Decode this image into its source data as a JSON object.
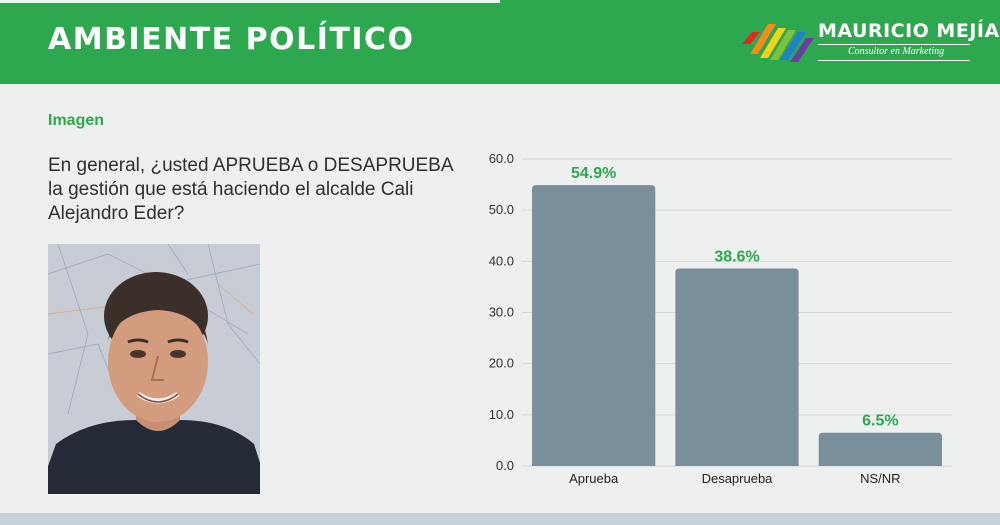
{
  "header": {
    "title": "AMBIENTE POLÍTICO",
    "brand_name": "MAURICIO MEJÍA",
    "brand_tagline": "Consultor en Marketing",
    "brand_color": "#2da84e"
  },
  "section_label": "Imagen",
  "question": "En general, ¿usted APRUEBA o DESAPRUEBA la gestión que está haciendo el alcalde Cali Alejandro Eder?",
  "photo": {
    "icon": "portrait-photo"
  },
  "colors": {
    "bar": "#7a8f9c",
    "value_label": "#2da84e",
    "background": "#eeefef"
  },
  "chart_data": {
    "type": "bar",
    "categories": [
      "Aprueba",
      "Desaprueba",
      "NS/NR"
    ],
    "values": [
      54.9,
      38.6,
      6.5
    ],
    "value_labels": [
      "54.9%",
      "38.6%",
      "6.5%"
    ],
    "ylim": [
      0,
      60
    ],
    "yticks": [
      "0.0",
      "10.0",
      "20.0",
      "30.0",
      "40.0",
      "50.0",
      "60.0"
    ],
    "grid": true,
    "title": "",
    "xlabel": "",
    "ylabel": ""
  }
}
